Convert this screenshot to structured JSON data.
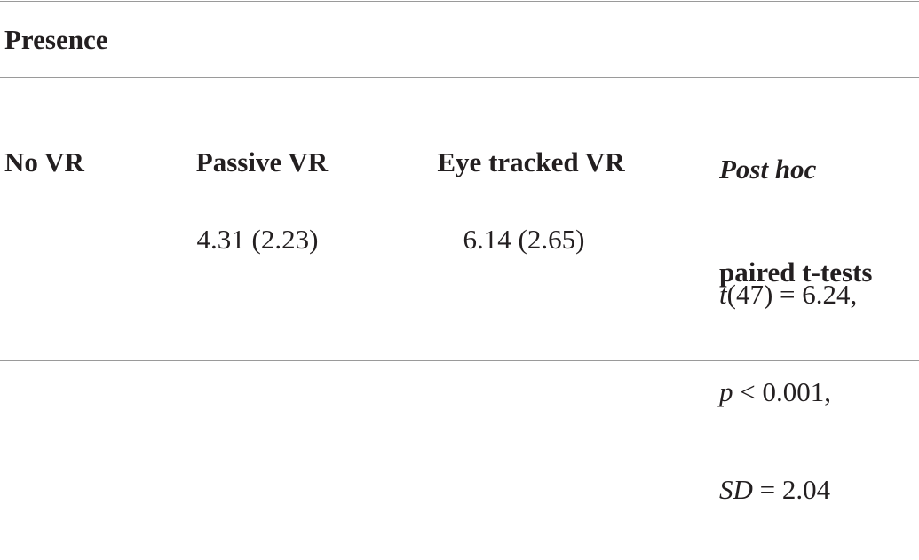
{
  "title": "Presence",
  "table": {
    "header": [
      "No VR",
      "Passive VR",
      "Eye tracked VR",
      {
        "italic": "Post hoc",
        "text": "paired t-tests"
      }
    ],
    "rows": [
      [
        null,
        "4.31 (2.23)",
        "6.14 (2.65)",
        [
          {
            "italic": "t",
            "text": "(47) = 6.24,"
          },
          {
            "italic": "p",
            "text": " < 0.001,"
          },
          {
            "italic": "SD",
            "text": " = 2.04"
          }
        ]
      ]
    ]
  }
}
